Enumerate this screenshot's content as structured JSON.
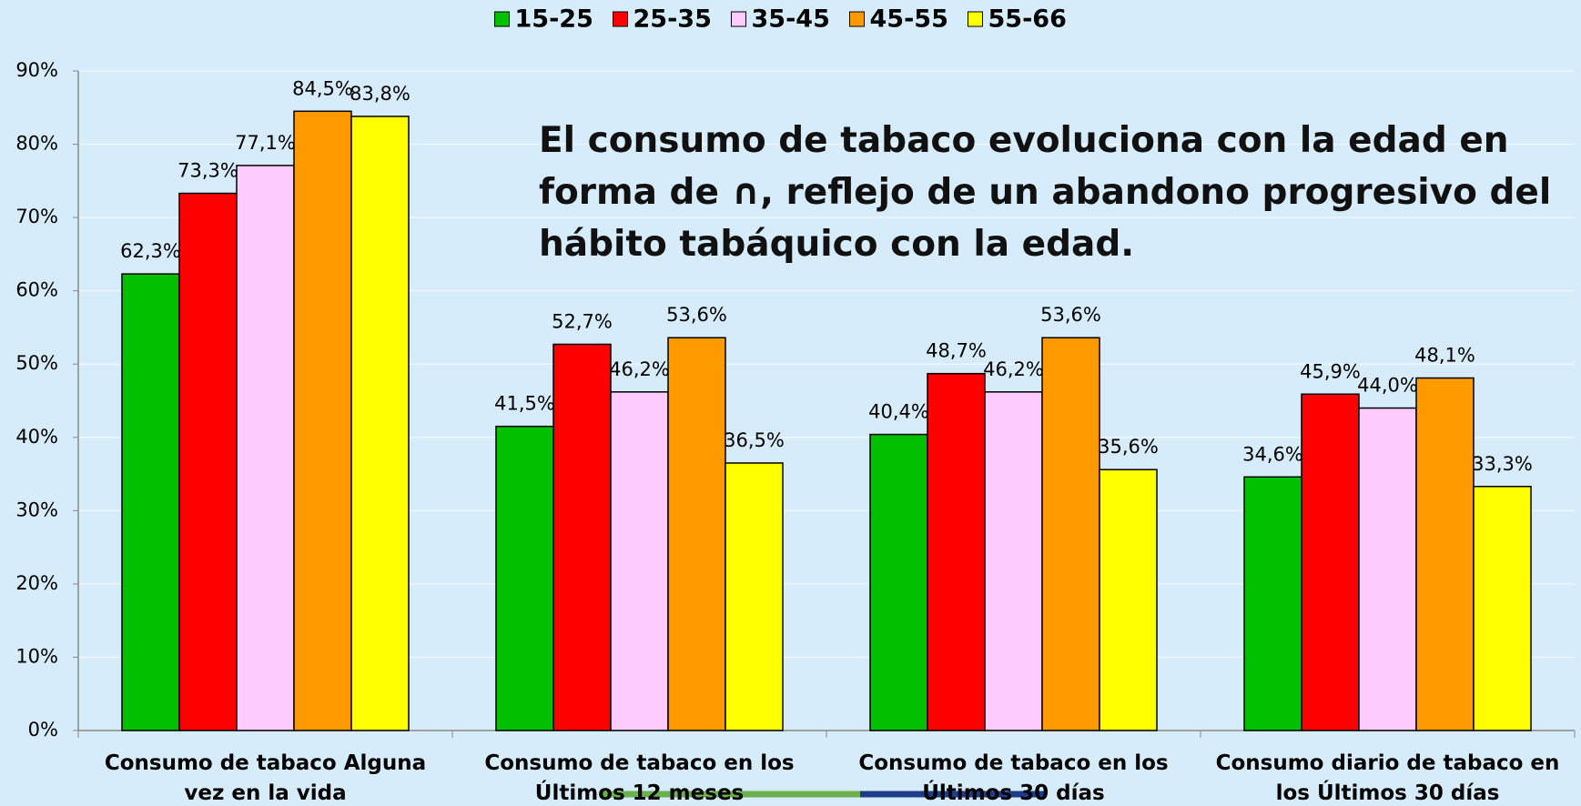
{
  "chart_data": {
    "type": "bar",
    "annotation": "El consumo de tabaco evoluciona con la edad en forma de ∩, reflejo de un abandono progresivo del hábito tabáquico con la edad.",
    "categories": [
      "Consumo de tabaco Alguna vez en la vida",
      "Consumo de tabaco en los Últimos 12 meses",
      "Consumo de tabaco en los Últimos 30 días",
      "Consumo diario de tabaco en los Últimos 30 días"
    ],
    "series": [
      {
        "name": "15-25",
        "color": "#00c000",
        "values": [
          62.3,
          41.5,
          40.4,
          34.6
        ],
        "value_labels": [
          "62,3%",
          "41,5%",
          "40,4%",
          "34,6%"
        ]
      },
      {
        "name": "25-35",
        "color": "#ff0000",
        "values": [
          73.3,
          52.7,
          48.7,
          45.9
        ],
        "value_labels": [
          "73,3%",
          "52,7%",
          "48,7%",
          "45,9%"
        ]
      },
      {
        "name": "35-45",
        "color": "#ffccff",
        "values": [
          77.1,
          46.2,
          46.2,
          44.0
        ],
        "value_labels": [
          "77,1%",
          "46,2%",
          "46,2%",
          "44,0%"
        ]
      },
      {
        "name": "45-55",
        "color": "#ff9900",
        "values": [
          84.5,
          53.6,
          53.6,
          48.1
        ],
        "value_labels": [
          "84,5%",
          "53,6%",
          "53,6%",
          "48,1%"
        ]
      },
      {
        "name": "55-66",
        "color": "#ffff00",
        "values": [
          83.8,
          36.5,
          35.6,
          33.3
        ],
        "value_labels": [
          "83,8%",
          "36,5%",
          "35,6%",
          "33,3%"
        ]
      }
    ],
    "ylim": [
      0,
      90
    ],
    "yticks": [
      {
        "value": 0,
        "label": "0%"
      },
      {
        "value": 10,
        "label": "10%"
      },
      {
        "value": 20,
        "label": "20%"
      },
      {
        "value": 30,
        "label": "30%"
      },
      {
        "value": 40,
        "label": "40%"
      },
      {
        "value": 50,
        "label": "50%"
      },
      {
        "value": 60,
        "label": "60%"
      },
      {
        "value": 70,
        "label": "70%"
      },
      {
        "value": 80,
        "label": "80%"
      },
      {
        "value": 90,
        "label": "90%"
      }
    ],
    "grid": true,
    "legend": "top"
  }
}
